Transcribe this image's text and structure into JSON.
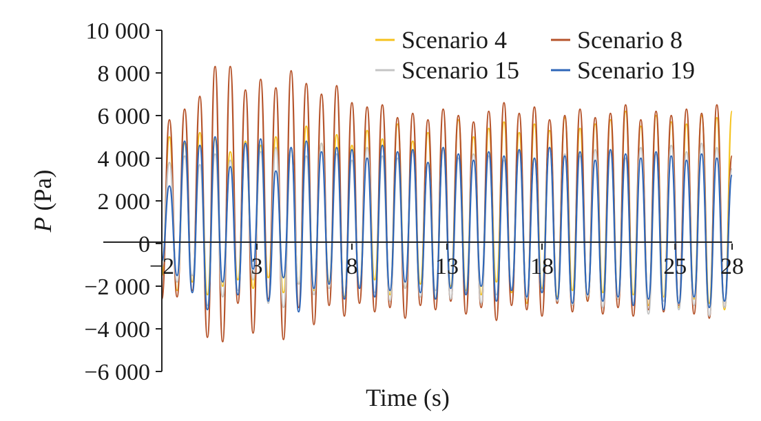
{
  "chart_data": {
    "type": "line",
    "xlabel": "Time (s)",
    "ylabel_italic": "P",
    "ylabel_unit": " (Pa)",
    "xlim": [
      -2,
      28
    ],
    "ylim": [
      -6000,
      10000
    ],
    "x_ticks": [
      {
        "value": -2,
        "label": "−2"
      },
      {
        "value": 3,
        "label": "3"
      },
      {
        "value": 8,
        "label": "8"
      },
      {
        "value": 13,
        "label": "13"
      },
      {
        "value": 18,
        "label": "18"
      },
      {
        "value": 25,
        "label": "25"
      },
      {
        "value": 28,
        "label": "28"
      }
    ],
    "y_ticks": [
      {
        "value": 10000,
        "label": "10 000"
      },
      {
        "value": 8000,
        "label": "8 000"
      },
      {
        "value": 6000,
        "label": "6 000"
      },
      {
        "value": 4000,
        "label": "4 000"
      },
      {
        "value": 2000,
        "label": "2 000"
      },
      {
        "value": 0,
        "label": "0"
      },
      {
        "value": -2000,
        "label": "−2 000"
      },
      {
        "value": -4000,
        "label": "−4 000"
      },
      {
        "value": -6000,
        "label": "−6 000"
      }
    ],
    "legend_position": "top-right",
    "x": [
      -2.0,
      -1.6,
      -1.2,
      -0.8,
      -0.4,
      0.0,
      0.4,
      0.8,
      1.2,
      1.6,
      2.0,
      2.4,
      2.8,
      3.2,
      3.6,
      4.0,
      4.4,
      4.8,
      5.2,
      5.6,
      6.0,
      6.4,
      6.8,
      7.2,
      7.6,
      8.0,
      8.4,
      8.8,
      9.2,
      9.6,
      10.0,
      10.4,
      10.8,
      11.2,
      11.6,
      12.0,
      12.4,
      12.8,
      13.2,
      13.6,
      14.0,
      14.4,
      14.8,
      15.2,
      15.6,
      16.0,
      16.4,
      16.8,
      17.2,
      17.6,
      18.0,
      18.4,
      18.8,
      19.2,
      19.6,
      20.0,
      20.4,
      20.8,
      21.2,
      21.6,
      22.0,
      22.4,
      22.8,
      23.2,
      23.6,
      24.0,
      24.4,
      24.8,
      25.2,
      25.6,
      26.0,
      26.4,
      26.8,
      27.2,
      27.6,
      28.0
    ],
    "series": [
      {
        "name": "Scenario 4",
        "color": "#f5c21b",
        "values": [
          -1500,
          5000,
          -2200,
          4700,
          -1800,
          5200,
          -2400,
          4900,
          -2000,
          4300,
          -1700,
          4800,
          -2100,
          4600,
          -1600,
          5000,
          -2300,
          4400,
          -1900,
          5500,
          -2200,
          4700,
          -1800,
          5100,
          -2500,
          4600,
          -2000,
          5300,
          -1700,
          4900,
          -2400,
          5600,
          -2100,
          4800,
          -1900,
          5200,
          -2600,
          4500,
          -2000,
          5800,
          -2200,
          5000,
          -2400,
          5400,
          -1800,
          5700,
          -2300,
          5200,
          -2800,
          5600,
          -2100,
          5300,
          -2500,
          5900,
          -2200,
          5400,
          -2700,
          5600,
          -2300,
          5800,
          -2600,
          6200,
          -2400,
          5500,
          -2900,
          6000,
          -2500,
          5700,
          -3000,
          5600,
          -2600,
          6000,
          -2800,
          5900,
          -3100,
          6200
        ]
      },
      {
        "name": "Scenario 8",
        "color": "#b5532a",
        "values": [
          -2600,
          5800,
          -2500,
          6300,
          -2200,
          6900,
          -4400,
          8300,
          -4600,
          8300,
          -2800,
          7200,
          -4200,
          7700,
          -2600,
          7300,
          -4500,
          8100,
          -3000,
          7500,
          -3800,
          7000,
          -2900,
          7400,
          -3400,
          6600,
          -2800,
          6400,
          -3200,
          6500,
          -3000,
          5900,
          -3500,
          6100,
          -2900,
          5800,
          -3100,
          6300,
          -2700,
          6000,
          -3300,
          5700,
          -3000,
          6200,
          -3600,
          6600,
          -2900,
          6100,
          -3100,
          6400,
          -3400,
          5800,
          -2800,
          6000,
          -3200,
          6300,
          -2700,
          5900,
          -3300,
          6100,
          -3000,
          6500,
          -3400,
          5800,
          -3100,
          6200,
          -3200,
          6000,
          -2900,
          6300,
          -3300,
          6100,
          -3500,
          6500,
          -3000,
          4100
        ]
      },
      {
        "name": "Scenario 15",
        "color": "#c4c4c4",
        "values": [
          -1100,
          3800,
          -1800,
          4100,
          -1500,
          3700,
          -2900,
          4200,
          -2500,
          3900,
          -2200,
          4600,
          -1700,
          4300,
          -2800,
          4500,
          -3000,
          4400,
          -1900,
          4100,
          -2400,
          4700,
          -2100,
          4200,
          -2600,
          3900,
          -2000,
          4500,
          -2300,
          4100,
          -2700,
          4000,
          -2100,
          4300,
          -2500,
          3800,
          -2200,
          4400,
          -2600,
          4000,
          -2300,
          4200,
          -2800,
          4100,
          -2400,
          3900,
          -2100,
          4300,
          -2600,
          4000,
          -2300,
          4500,
          -2700,
          4200,
          -2900,
          4100,
          -2500,
          4400,
          -3000,
          4300,
          -2600,
          4000,
          -2800,
          4500,
          -3300,
          4200,
          -2700,
          4600,
          -3100,
          4300,
          -2900,
          4700,
          -3400,
          4500,
          -3000,
          3500
        ]
      },
      {
        "name": "Scenario 19",
        "color": "#2e66b8",
        "values": [
          -800,
          2700,
          -1500,
          4800,
          -2300,
          4600,
          -3100,
          5000,
          -1800,
          3600,
          -2400,
          4700,
          -1200,
          4900,
          -2700,
          3400,
          -1600,
          4500,
          -3200,
          4800,
          -2100,
          4300,
          -1900,
          4500,
          -2600,
          4400,
          -2100,
          4000,
          -2500,
          4600,
          -2200,
          4300,
          -1800,
          4400,
          -2300,
          3800,
          -2600,
          4500,
          -2100,
          4200,
          -2400,
          3900,
          -2000,
          4300,
          -2700,
          4100,
          -2200,
          4400,
          -2500,
          4000,
          -2300,
          4500,
          -2600,
          4100,
          -2800,
          4300,
          -2400,
          3900,
          -2700,
          4400,
          -2500,
          4200,
          -2900,
          4000,
          -2600,
          4300,
          -3100,
          4100,
          -2800,
          3900,
          -2500,
          4200,
          -3000,
          4000,
          -2700,
          3200
        ]
      }
    ]
  }
}
